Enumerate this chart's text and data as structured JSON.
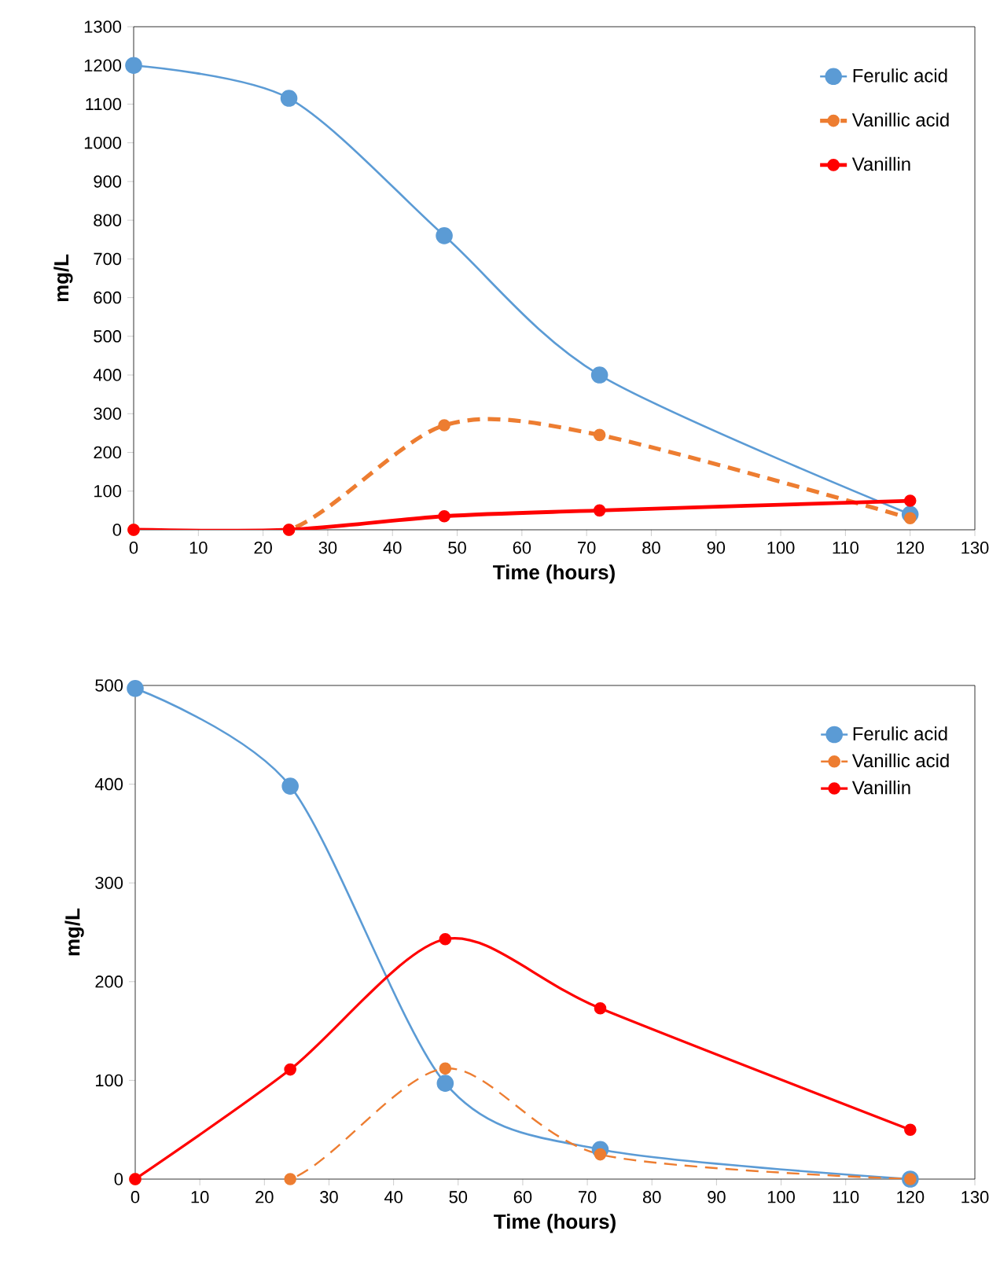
{
  "chart_data": [
    {
      "type": "line",
      "xlabel": "Time (hours)",
      "ylabel": "mg/L",
      "x": [
        0,
        24,
        48,
        72,
        120
      ],
      "xlim": [
        0,
        130
      ],
      "xticks": [
        0,
        10,
        20,
        30,
        40,
        50,
        60,
        70,
        80,
        90,
        100,
        110,
        120,
        130
      ],
      "ylim": [
        0,
        1300
      ],
      "yticks": [
        0,
        100,
        200,
        300,
        400,
        500,
        600,
        700,
        800,
        900,
        1000,
        1100,
        1200,
        1300
      ],
      "legend": "top right",
      "marker": "circle",
      "grid": false,
      "series": [
        {
          "name": "Ferulic acid",
          "color": "#5b9bd5",
          "line_style": "solid",
          "values": [
            1200,
            1115,
            760,
            400,
            40
          ]
        },
        {
          "name": "Vanillic acid",
          "color": "#ed7d31",
          "line_style": "dashed",
          "values": [
            0,
            0,
            270,
            245,
            30
          ]
        },
        {
          "name": "Vanillin",
          "color": "#ff0000",
          "line_style": "solid",
          "values": [
            0,
            0,
            35,
            50,
            75
          ]
        }
      ]
    },
    {
      "type": "line",
      "xlabel": "Time (hours)",
      "ylabel": "mg/L",
      "x": [
        0,
        24,
        48,
        72,
        120
      ],
      "xlim": [
        0,
        130
      ],
      "xticks": [
        0,
        10,
        20,
        30,
        40,
        50,
        60,
        70,
        80,
        90,
        100,
        110,
        120,
        130
      ],
      "ylim": [
        0,
        500
      ],
      "yticks": [
        0,
        100,
        200,
        300,
        400,
        500
      ],
      "legend": "top right",
      "marker": "circle",
      "grid": false,
      "series": [
        {
          "name": "Ferulic acid",
          "color": "#5b9bd5",
          "line_style": "solid",
          "values": [
            497,
            398,
            97,
            30,
            0
          ]
        },
        {
          "name": "Vanillic acid",
          "color": "#ed7d31",
          "line_style": "dashed",
          "values": [
            0,
            0,
            112,
            25,
            0
          ]
        },
        {
          "name": "Vanillin",
          "color": "#ff0000",
          "line_style": "solid",
          "values": [
            0,
            111,
            243,
            173,
            50
          ]
        }
      ]
    }
  ]
}
